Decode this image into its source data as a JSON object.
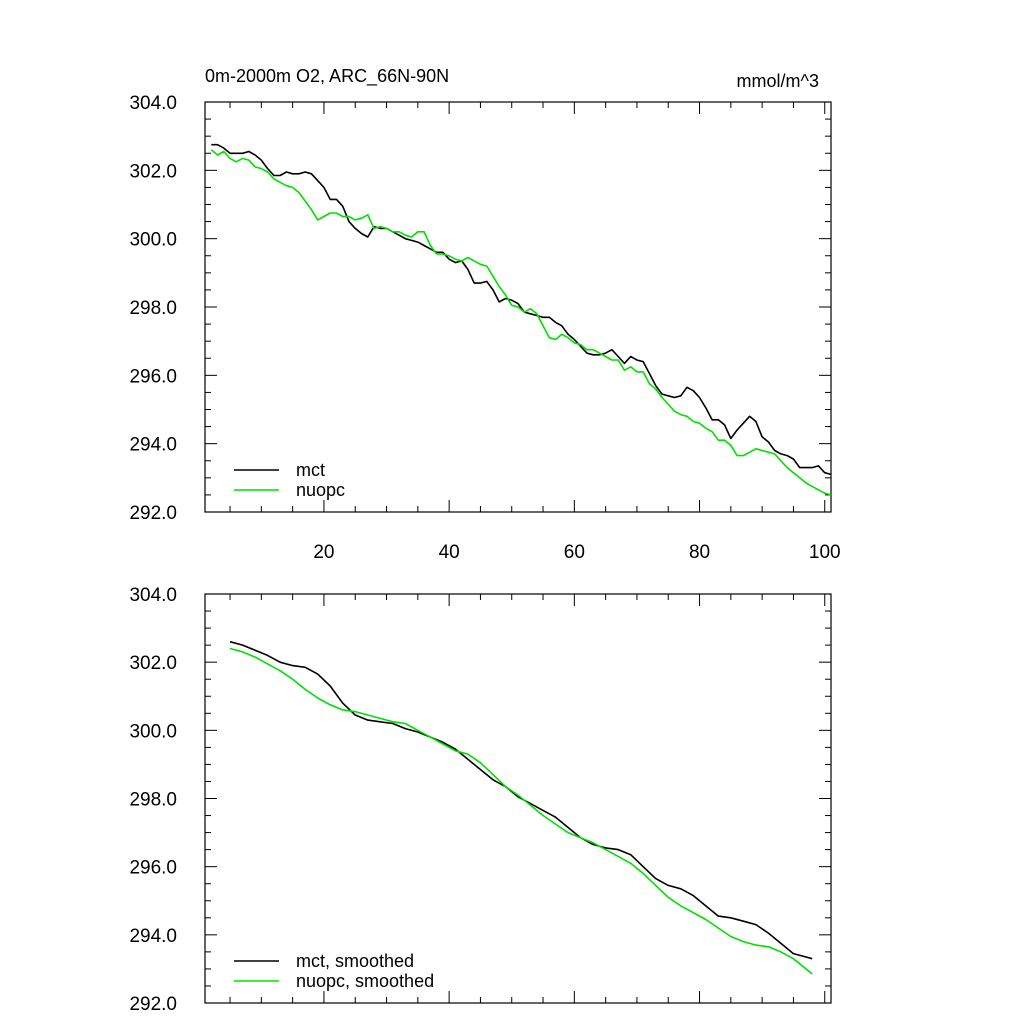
{
  "page": {
    "title_left": "0m-2000m O2, ARC_66N-90N",
    "title_right": "mmol/m^3"
  },
  "colors": {
    "mct": "#000000",
    "nuopc": "#00e000"
  },
  "chart_data": [
    {
      "type": "line",
      "title": "0m-2000m O2, ARC_66N-90N",
      "units": "mmol/m^3",
      "xlim": [
        1,
        101
      ],
      "ylim": [
        292,
        304
      ],
      "x_ticks": [
        20,
        40,
        60,
        80,
        100
      ],
      "x_tick_labels": [
        "20",
        "40",
        "60",
        "80",
        "100"
      ],
      "y_ticks": [
        292,
        294,
        296,
        298,
        300,
        302,
        304
      ],
      "y_tick_labels": [
        "292.0",
        "294.0",
        "296.0",
        "298.0",
        "300.0",
        "302.0",
        "304.0"
      ],
      "legend": "bottom-left",
      "series": [
        {
          "name": "mct",
          "color": "#000000",
          "x": [
            2,
            3,
            4,
            5,
            6,
            7,
            8,
            9,
            10,
            11,
            12,
            13,
            14,
            15,
            16,
            17,
            18,
            19,
            20,
            21,
            22,
            23,
            24,
            25,
            26,
            27,
            28,
            29,
            30,
            31,
            32,
            33,
            34,
            35,
            36,
            37,
            38,
            39,
            40,
            41,
            42,
            43,
            44,
            45,
            46,
            47,
            48,
            49,
            50,
            51,
            52,
            53,
            54,
            55,
            56,
            57,
            58,
            59,
            60,
            61,
            62,
            63,
            64,
            65,
            66,
            67,
            68,
            69,
            70,
            71,
            72,
            73,
            74,
            75,
            76,
            77,
            78,
            79,
            80,
            81,
            82,
            83,
            84,
            85,
            86,
            87,
            88,
            89,
            90,
            91,
            92,
            93,
            94,
            95,
            96,
            97,
            98,
            99,
            100,
            101
          ],
          "y": [
            302.75,
            302.75,
            302.65,
            302.5,
            302.5,
            302.5,
            302.55,
            302.45,
            302.3,
            302.05,
            301.85,
            301.85,
            301.95,
            301.9,
            301.9,
            301.95,
            301.9,
            301.7,
            301.5,
            301.15,
            301.15,
            300.95,
            300.5,
            300.3,
            300.15,
            300.05,
            300.35,
            300.3,
            300.3,
            300.2,
            300.1,
            300.0,
            299.95,
            299.9,
            299.8,
            299.7,
            299.6,
            299.6,
            299.4,
            299.3,
            299.35,
            299.1,
            298.7,
            298.7,
            298.75,
            298.5,
            298.15,
            298.25,
            298.2,
            298.1,
            297.85,
            297.8,
            297.75,
            297.7,
            297.7,
            297.55,
            297.45,
            297.2,
            297.05,
            296.85,
            296.65,
            296.6,
            296.6,
            296.65,
            296.75,
            296.55,
            296.35,
            296.55,
            296.45,
            296.4,
            296.05,
            295.7,
            295.45,
            295.4,
            295.35,
            295.4,
            295.65,
            295.55,
            295.35,
            295.05,
            294.7,
            294.7,
            294.55,
            294.15,
            294.4,
            294.6,
            294.8,
            294.65,
            294.2,
            294.05,
            293.8,
            293.7,
            293.65,
            293.55,
            293.3,
            293.3,
            293.3,
            293.35,
            293.15,
            293.1
          ]
        },
        {
          "name": "nuopc",
          "color": "#00e000",
          "x": [
            2,
            3,
            4,
            5,
            6,
            7,
            8,
            9,
            10,
            11,
            12,
            13,
            14,
            15,
            16,
            17,
            18,
            19,
            20,
            21,
            22,
            23,
            24,
            25,
            26,
            27,
            28,
            29,
            30,
            31,
            32,
            33,
            34,
            35,
            36,
            37,
            38,
            39,
            40,
            41,
            42,
            43,
            44,
            45,
            46,
            47,
            48,
            49,
            50,
            51,
            52,
            53,
            54,
            55,
            56,
            57,
            58,
            59,
            60,
            61,
            62,
            63,
            64,
            65,
            66,
            67,
            68,
            69,
            70,
            71,
            72,
            73,
            74,
            75,
            76,
            77,
            78,
            79,
            80,
            81,
            82,
            83,
            84,
            85,
            86,
            87,
            88,
            89,
            90,
            91,
            92,
            93,
            94,
            95,
            96,
            97,
            98,
            99,
            100,
            101
          ],
          "y": [
            302.6,
            302.45,
            302.55,
            302.35,
            302.25,
            302.35,
            302.3,
            302.1,
            302.05,
            301.95,
            301.75,
            301.65,
            301.55,
            301.5,
            301.35,
            301.1,
            300.85,
            300.55,
            300.65,
            300.75,
            300.75,
            300.65,
            300.65,
            300.55,
            300.6,
            300.7,
            300.3,
            300.35,
            300.3,
            300.2,
            300.2,
            300.1,
            300.05,
            300.2,
            300.2,
            299.8,
            299.55,
            299.55,
            299.5,
            299.4,
            299.35,
            299.45,
            299.35,
            299.25,
            299.2,
            298.9,
            298.6,
            298.35,
            298.05,
            298.0,
            297.85,
            297.95,
            297.8,
            297.45,
            297.1,
            297.05,
            297.2,
            297.1,
            296.95,
            296.9,
            296.75,
            296.75,
            296.65,
            296.55,
            296.45,
            296.45,
            296.15,
            296.25,
            296.1,
            296.1,
            295.75,
            295.6,
            295.35,
            295.15,
            294.95,
            294.85,
            294.8,
            294.65,
            294.6,
            294.45,
            294.35,
            294.1,
            294.1,
            293.95,
            293.65,
            293.65,
            293.75,
            293.85,
            293.8,
            293.75,
            293.7,
            293.5,
            293.3,
            293.15,
            293.0,
            292.85,
            292.75,
            292.65,
            292.55,
            292.5
          ]
        }
      ]
    },
    {
      "type": "line",
      "xlim": [
        1,
        101
      ],
      "ylim": [
        292,
        304
      ],
      "x_ticks": [
        20,
        40,
        60,
        80,
        100
      ],
      "y_ticks": [
        292,
        294,
        296,
        298,
        300,
        302,
        304
      ],
      "y_tick_labels": [
        "292.0",
        "294.0",
        "296.0",
        "298.0",
        "300.0",
        "302.0",
        "304.0"
      ],
      "legend": "bottom-left",
      "series": [
        {
          "name": "mct, smoothed",
          "color": "#000000",
          "x": [
            5,
            7,
            9,
            11,
            13,
            15,
            17,
            19,
            21,
            23,
            25,
            27,
            29,
            31,
            33,
            35,
            37,
            39,
            41,
            43,
            45,
            47,
            49,
            51,
            53,
            55,
            57,
            59,
            61,
            63,
            65,
            67,
            69,
            71,
            73,
            75,
            77,
            79,
            81,
            83,
            85,
            87,
            89,
            91,
            93,
            95,
            97,
            98
          ],
          "y": [
            302.6,
            302.5,
            302.35,
            302.2,
            302.0,
            301.9,
            301.85,
            301.65,
            301.3,
            300.8,
            300.45,
            300.3,
            300.25,
            300.2,
            300.05,
            299.95,
            299.8,
            299.65,
            299.45,
            299.15,
            298.85,
            298.55,
            298.35,
            298.05,
            297.85,
            297.65,
            297.45,
            297.15,
            296.85,
            296.65,
            296.55,
            296.5,
            296.35,
            296.0,
            295.65,
            295.45,
            295.35,
            295.15,
            294.85,
            294.55,
            294.5,
            294.4,
            294.3,
            294.05,
            293.75,
            293.45,
            293.35,
            293.3
          ]
        },
        {
          "name": "nuopc, smoothed",
          "color": "#00e000",
          "x": [
            5,
            7,
            9,
            11,
            13,
            15,
            17,
            19,
            21,
            23,
            25,
            27,
            29,
            31,
            33,
            35,
            37,
            39,
            41,
            43,
            45,
            47,
            49,
            51,
            53,
            55,
            57,
            59,
            61,
            63,
            65,
            67,
            69,
            71,
            73,
            75,
            77,
            79,
            81,
            83,
            85,
            87,
            89,
            91,
            93,
            95,
            97,
            98
          ],
          "y": [
            302.4,
            302.3,
            302.15,
            301.95,
            301.75,
            301.5,
            301.2,
            300.95,
            300.75,
            300.6,
            300.55,
            300.45,
            300.35,
            300.25,
            300.2,
            300.0,
            299.8,
            299.6,
            299.4,
            299.3,
            299.05,
            298.7,
            298.35,
            298.1,
            297.8,
            297.5,
            297.25,
            297.0,
            296.85,
            296.7,
            296.5,
            296.3,
            296.1,
            295.8,
            295.45,
            295.1,
            294.85,
            294.65,
            294.45,
            294.2,
            293.95,
            293.8,
            293.7,
            293.65,
            293.5,
            293.3,
            293.0,
            292.85
          ]
        }
      ]
    }
  ]
}
